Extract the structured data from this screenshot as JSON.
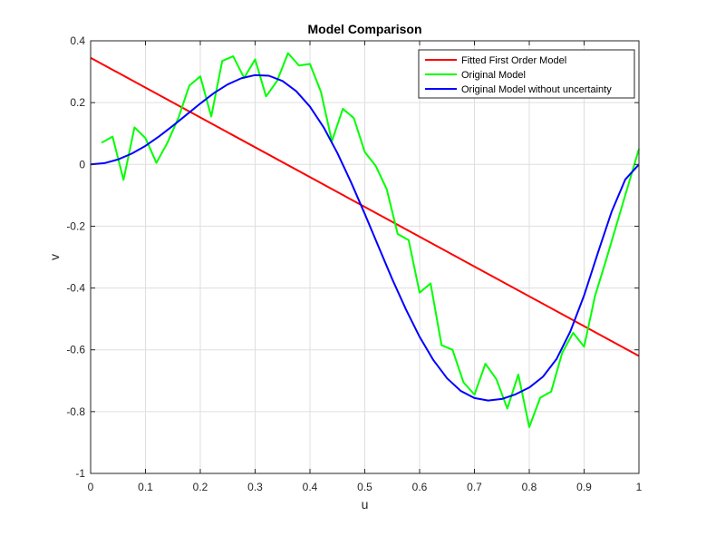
{
  "chart_data": {
    "type": "line",
    "title": "Model Comparison",
    "xlabel": "u",
    "ylabel": "v",
    "xlim": [
      0,
      1
    ],
    "ylim": [
      -1,
      0.4
    ],
    "xticks": [
      0,
      0.1,
      0.2,
      0.3,
      0.4,
      0.5,
      0.6,
      0.7,
      0.8,
      0.9,
      1
    ],
    "xtick_labels": [
      "0",
      "0.1",
      "0.2",
      "0.3",
      "0.4",
      "0.5",
      "0.6",
      "0.7",
      "0.8",
      "0.9",
      "1"
    ],
    "yticks": [
      -1,
      -0.8,
      -0.6,
      -0.4,
      -0.2,
      0,
      0.2,
      0.4
    ],
    "ytick_labels": [
      "-1",
      "-0.8",
      "-0.6",
      "-0.4",
      "-0.2",
      "0",
      "0.2",
      "0.4"
    ],
    "grid": true,
    "legend_position": "top-right",
    "series": [
      {
        "name": "Fitted First Order Model",
        "color": "#ff0000",
        "x": [
          0,
          1
        ],
        "y": [
          0.345,
          -0.62
        ]
      },
      {
        "name": "Original Model",
        "color": "#00ff00",
        "x": [
          0.02,
          0.04,
          0.06,
          0.08,
          0.1,
          0.12,
          0.14,
          0.16,
          0.18,
          0.2,
          0.22,
          0.24,
          0.26,
          0.28,
          0.3,
          0.32,
          0.34,
          0.36,
          0.38,
          0.4,
          0.42,
          0.44,
          0.46,
          0.48,
          0.5,
          0.52,
          0.54,
          0.56,
          0.58,
          0.6,
          0.62,
          0.64,
          0.66,
          0.68,
          0.7,
          0.72,
          0.74,
          0.76,
          0.78,
          0.8,
          0.82,
          0.84,
          0.86,
          0.88,
          0.9,
          0.92,
          0.94,
          0.96,
          0.98,
          1.0
        ],
        "y": [
          0.07,
          0.09,
          -0.05,
          0.12,
          0.085,
          0.005,
          0.07,
          0.15,
          0.255,
          0.285,
          0.155,
          0.335,
          0.35,
          0.28,
          0.34,
          0.22,
          0.27,
          0.36,
          0.32,
          0.325,
          0.235,
          0.075,
          0.18,
          0.15,
          0.04,
          -0.005,
          -0.08,
          -0.225,
          -0.245,
          -0.415,
          -0.385,
          -0.585,
          -0.6,
          -0.705,
          -0.745,
          -0.645,
          -0.695,
          -0.79,
          -0.68,
          -0.85,
          -0.755,
          -0.735,
          -0.61,
          -0.545,
          -0.59,
          -0.425,
          -0.31,
          -0.19,
          -0.07,
          0.05
        ]
      },
      {
        "name": "Original Model without uncertainty",
        "color": "#0000ff",
        "x": [
          0,
          0.025,
          0.05,
          0.075,
          0.1,
          0.125,
          0.15,
          0.175,
          0.2,
          0.225,
          0.25,
          0.275,
          0.3,
          0.325,
          0.35,
          0.375,
          0.4,
          0.425,
          0.45,
          0.475,
          0.5,
          0.525,
          0.55,
          0.575,
          0.6,
          0.625,
          0.65,
          0.675,
          0.7,
          0.725,
          0.75,
          0.775,
          0.8,
          0.825,
          0.85,
          0.875,
          0.9,
          0.925,
          0.95,
          0.975,
          1
        ],
        "y": [
          0,
          0.004,
          0.016,
          0.035,
          0.06,
          0.091,
          0.125,
          0.161,
          0.197,
          0.231,
          0.259,
          0.279,
          0.289,
          0.287,
          0.27,
          0.237,
          0.187,
          0.12,
          0.037,
          -0.058,
          -0.16,
          -0.266,
          -0.371,
          -0.469,
          -0.558,
          -0.633,
          -0.692,
          -0.733,
          -0.756,
          -0.764,
          -0.759,
          -0.744,
          -0.722,
          -0.687,
          -0.629,
          -0.54,
          -0.424,
          -0.287,
          -0.154,
          -0.049,
          0
        ]
      }
    ]
  }
}
